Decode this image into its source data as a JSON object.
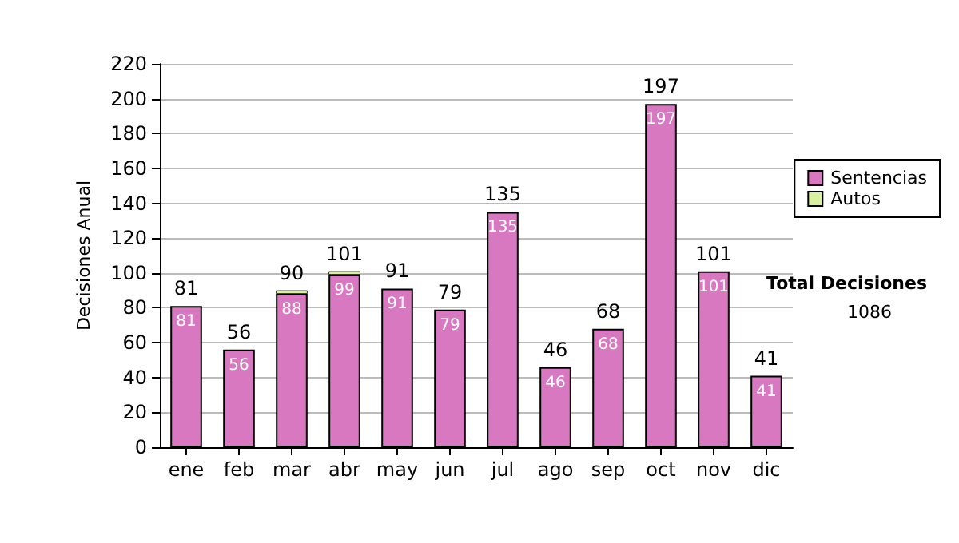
{
  "chart_data": {
    "type": "bar",
    "ylabel": "Decisiones Anual",
    "categories": [
      "ene",
      "feb",
      "mar",
      "abr",
      "may",
      "jun",
      "jul",
      "ago",
      "sep",
      "oct",
      "nov",
      "dic"
    ],
    "series": [
      {
        "name": "Sentencias",
        "color": "#d878c0",
        "values": [
          81,
          56,
          88,
          99,
          91,
          79,
          135,
          46,
          68,
          197,
          101,
          41
        ],
        "value_labels": [
          "81",
          "56",
          "88",
          "99",
          "91",
          "79",
          "135",
          "46",
          "68",
          "197",
          "101",
          "41"
        ]
      },
      {
        "name": "Autos",
        "color": "#d8f0a0",
        "values": [
          0,
          0,
          2,
          2,
          0,
          0,
          0,
          0,
          0,
          0,
          0,
          0
        ]
      }
    ],
    "stacked": true,
    "totals": [
      "81",
      "56",
      "90",
      "101",
      "91",
      "79",
      "135",
      "46",
      "68",
      "197",
      "101",
      "41"
    ],
    "ylim": [
      0,
      220
    ],
    "yticks": [
      0,
      20,
      40,
      60,
      80,
      100,
      120,
      140,
      160,
      180,
      200,
      220
    ],
    "grid": "y",
    "legend": "right",
    "annotations": [
      "Total Decisiones",
      "1086"
    ]
  }
}
